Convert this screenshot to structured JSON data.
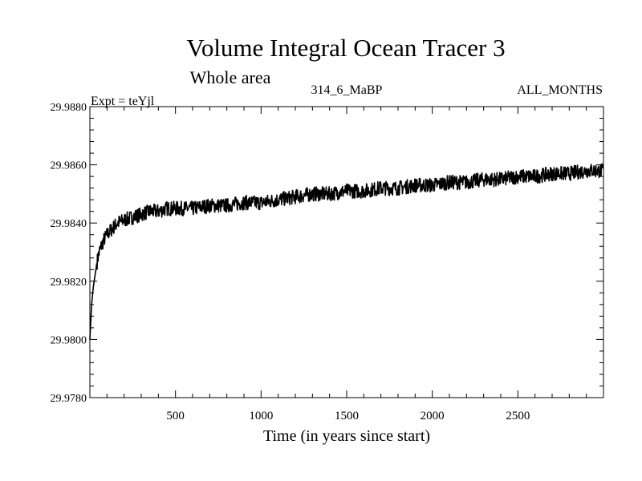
{
  "chart_data": {
    "type": "line",
    "title": "Volume Integral Ocean Tracer 3",
    "subtitle": "Whole area",
    "annotations": {
      "left": "Expt = teYjl",
      "center": "314_6_MaBP",
      "right": "ALL_MONTHS"
    },
    "xlabel": "Time (in years since start)",
    "ylabel": "",
    "xlim": [
      0,
      3000
    ],
    "ylim": [
      29.978,
      29.988
    ],
    "x_ticks": [
      500,
      1000,
      1500,
      2000,
      2500
    ],
    "x_tick_labels": [
      "500",
      "1000",
      "1500",
      "2000",
      "2500"
    ],
    "y_ticks": [
      29.978,
      29.98,
      29.982,
      29.984,
      29.986,
      29.988
    ],
    "y_tick_labels": [
      "29.9780",
      "29.9800",
      "29.9820",
      "29.9840",
      "29.9860",
      "29.9880"
    ],
    "grid": false,
    "series": [
      {
        "x": [
          0,
          10,
          20,
          30,
          40,
          50,
          60,
          80,
          100,
          130,
          160,
          200,
          250,
          300,
          350,
          400,
          450,
          500,
          600,
          700,
          800,
          900,
          1000,
          1100,
          1200,
          1300,
          1400,
          1500,
          1600,
          1700,
          1800,
          1900,
          2000,
          2100,
          2200,
          2300,
          2400,
          2500,
          2600,
          2700,
          2800,
          2900,
          3000
        ],
        "y": [
          29.98,
          29.9812,
          29.9818,
          29.9822,
          29.9826,
          29.9829,
          29.9831,
          29.9834,
          29.9836,
          29.9838,
          29.984,
          29.9841,
          29.9842,
          29.9843,
          29.9844,
          29.9844,
          29.9845,
          29.9845,
          29.9845,
          29.9846,
          29.9846,
          29.9847,
          29.9847,
          29.9848,
          29.9849,
          29.985,
          29.985,
          29.9851,
          29.9851,
          29.9852,
          29.9852,
          29.9853,
          29.9853,
          29.9854,
          29.9854,
          29.9855,
          29.9855,
          29.9856,
          29.9856,
          29.9857,
          29.9857,
          29.9858,
          29.9858
        ],
        "color": "#000000"
      }
    ]
  }
}
